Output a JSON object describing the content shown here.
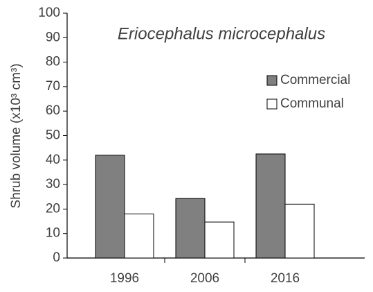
{
  "chart_data": {
    "type": "bar",
    "title": "Eriocephalus microcephalus",
    "y_label": "Shrub volume (x10³ cm³)",
    "categories": [
      "1996",
      "2006",
      "2016"
    ],
    "series": [
      {
        "name": "Commercial",
        "color": "#808080",
        "values": [
          42,
          24.3,
          42.5
        ]
      },
      {
        "name": "Communal",
        "color": "#ffffff",
        "values": [
          18,
          14.7,
          22
        ]
      }
    ],
    "ylim": [
      0,
      100
    ],
    "yticks": [
      0,
      10,
      20,
      30,
      40,
      50,
      60,
      70,
      80,
      90,
      100
    ],
    "legend": "upper right"
  }
}
